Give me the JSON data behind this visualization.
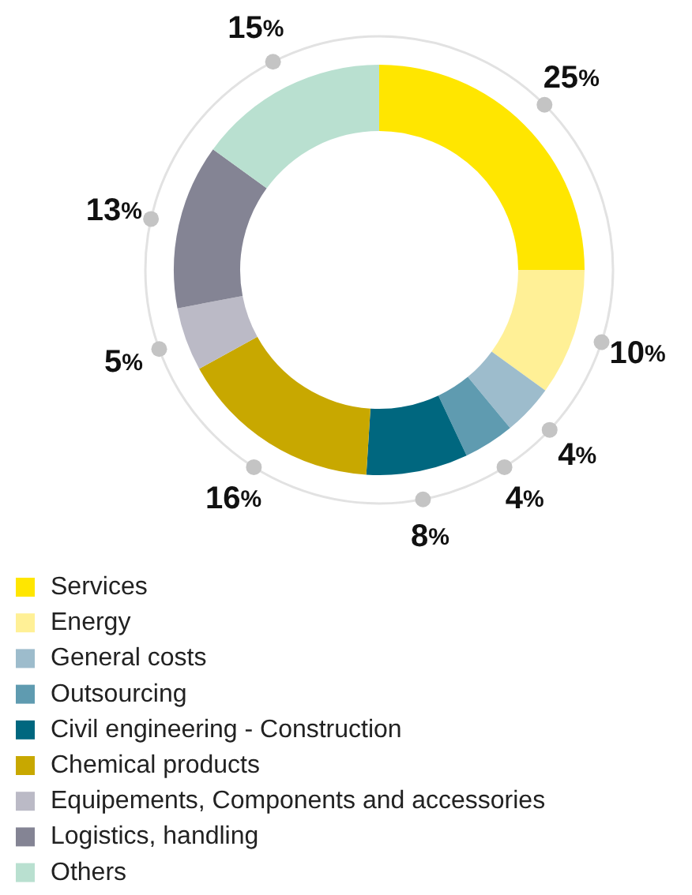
{
  "chart_data": {
    "type": "donut",
    "categories": [
      "Services",
      "Energy",
      "General costs",
      "Outsourcing",
      "Civil engineering - Construction",
      "Chemical products",
      "Equipements, Components and accessories",
      "Logistics, handling",
      "Others"
    ],
    "values": [
      25,
      10,
      4,
      4,
      8,
      16,
      5,
      13,
      15
    ],
    "colors": [
      "#ffe600",
      "#fff096",
      "#9dbccc",
      "#5f9bb0",
      "#00677f",
      "#c8a800",
      "#bbbac6",
      "#848494",
      "#b9e0d0"
    ],
    "value_labels": [
      "25%",
      "10%",
      "4%",
      "4%",
      "8%",
      "16%",
      "5%",
      "13%",
      "15%"
    ],
    "legend": "bottom"
  }
}
